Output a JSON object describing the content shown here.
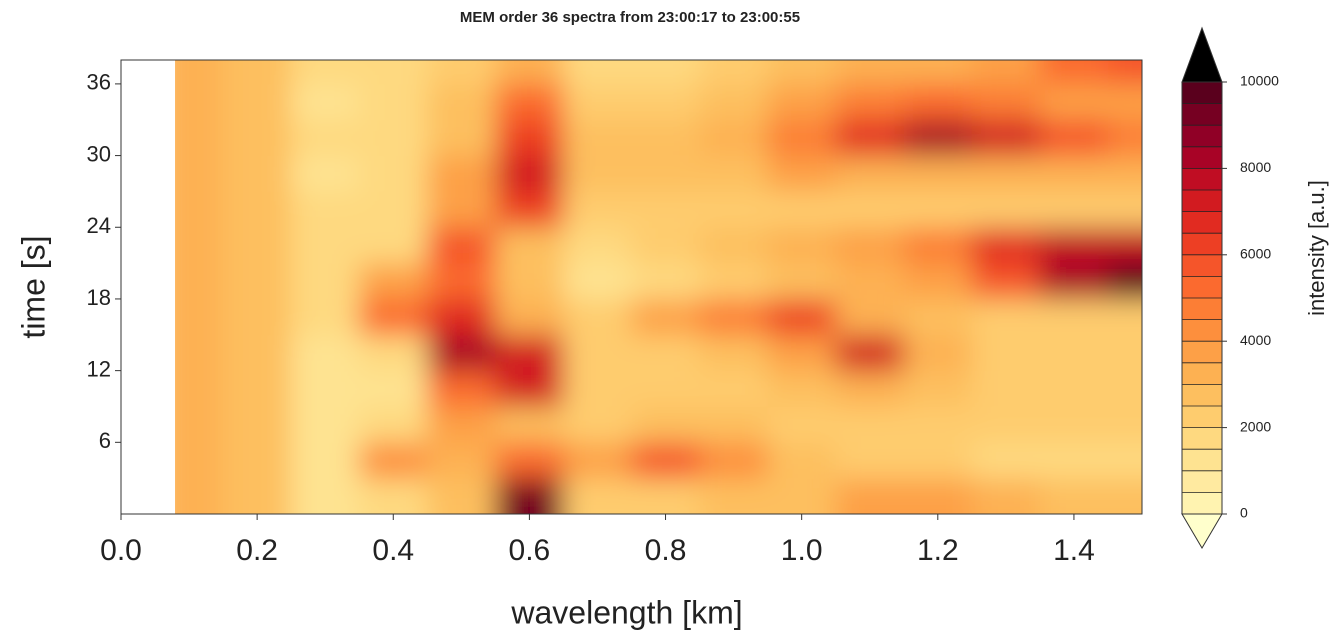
{
  "chart_data": {
    "type": "contourf",
    "title": "MEM order 36 spectra from 23:00:17 to 23:00:55",
    "xlabel": "wavelength [km]",
    "ylabel": "time [s]",
    "x": [
      0.1,
      0.2,
      0.3,
      0.4,
      0.5,
      0.6,
      0.7,
      0.8,
      0.9,
      1.0,
      1.1,
      1.2,
      1.3,
      1.4,
      1.5
    ],
    "y": [
      1.5,
      4.5,
      7.5,
      10.5,
      13.5,
      16.5,
      19.5,
      22.5,
      25.5,
      28.5,
      31.5,
      34.5,
      37.5
    ],
    "z": [
      [
        3000,
        2500,
        1000,
        1500,
        2500,
        9000,
        2000,
        2000,
        2500,
        2500,
        3500,
        3500,
        3000,
        2500,
        2500
      ],
      [
        3000,
        2500,
        1000,
        4000,
        3000,
        5000,
        3500,
        5500,
        4000,
        2500,
        2000,
        2000,
        1500,
        1500,
        1500
      ],
      [
        3000,
        2500,
        1000,
        1500,
        3500,
        2500,
        2000,
        2500,
        2500,
        2000,
        2000,
        2000,
        2000,
        2000,
        2000
      ],
      [
        3000,
        2500,
        1000,
        1000,
        5000,
        7000,
        2000,
        2000,
        2000,
        2500,
        3000,
        2500,
        2000,
        2000,
        2000
      ],
      [
        3000,
        2500,
        1000,
        1500,
        8000,
        7000,
        2000,
        2000,
        2500,
        3500,
        7000,
        3000,
        2000,
        2000,
        2000
      ],
      [
        3000,
        2500,
        1500,
        5000,
        6500,
        3000,
        2000,
        3500,
        4500,
        6000,
        3000,
        2500,
        2000,
        2000,
        2000
      ],
      [
        3000,
        2500,
        1500,
        3500,
        5000,
        2500,
        1000,
        1500,
        2000,
        2500,
        3000,
        3500,
        5500,
        8000,
        9500
      ],
      [
        3000,
        2500,
        1500,
        1500,
        5500,
        2500,
        1500,
        2000,
        2500,
        3000,
        3500,
        4500,
        6500,
        7500,
        7500
      ],
      [
        3000,
        2500,
        1500,
        1500,
        3500,
        6000,
        2000,
        2000,
        2000,
        2000,
        2000,
        2000,
        2000,
        2000,
        2000
      ],
      [
        3000,
        2500,
        1000,
        1500,
        3500,
        7000,
        2500,
        2500,
        2500,
        3500,
        3000,
        3000,
        3000,
        3000,
        3000
      ],
      [
        3000,
        2500,
        1500,
        1500,
        2500,
        6000,
        2500,
        2500,
        3000,
        4500,
        6500,
        8000,
        7000,
        5500,
        4500
      ],
      [
        3000,
        2500,
        1000,
        1500,
        2500,
        5000,
        2000,
        2000,
        2500,
        3500,
        4500,
        5000,
        4500,
        3500,
        3500
      ],
      [
        3000,
        2500,
        1500,
        1500,
        2000,
        3000,
        1500,
        1500,
        2000,
        2500,
        3000,
        3000,
        3500,
        5000,
        5500
      ]
    ],
    "xlim": [
      0,
      1.5
    ],
    "xticks": [
      {
        "value": 0,
        "label": "0.0"
      },
      0.2,
      0.4,
      0.6,
      0.8,
      {
        "value": 1,
        "label": "1.0"
      },
      1.2,
      1.4
    ],
    "ylim": [
      0,
      38
    ],
    "yticks": [
      6,
      12,
      18,
      24,
      30,
      36
    ],
    "colorbar": {
      "label": "intensity [a.u.]",
      "lim": [
        0,
        10000
      ],
      "ticks": [
        0,
        2000,
        4000,
        6000,
        8000,
        10000
      ],
      "colors": [
        "#fff3b0",
        "#ffeaa0",
        "#fee391",
        "#fed980",
        "#fecc6e",
        "#fdbf5f",
        "#fdb152",
        "#fda047",
        "#fd8f3d",
        "#fc7e35",
        "#fb6a2f",
        "#f5552a",
        "#ed3f24",
        "#e12b21",
        "#d21b20",
        "#c00d23",
        "#a80326",
        "#900026",
        "#760022",
        "#5a001d"
      ],
      "under_color": "#ffffcc",
      "over_color": "#000000"
    }
  }
}
